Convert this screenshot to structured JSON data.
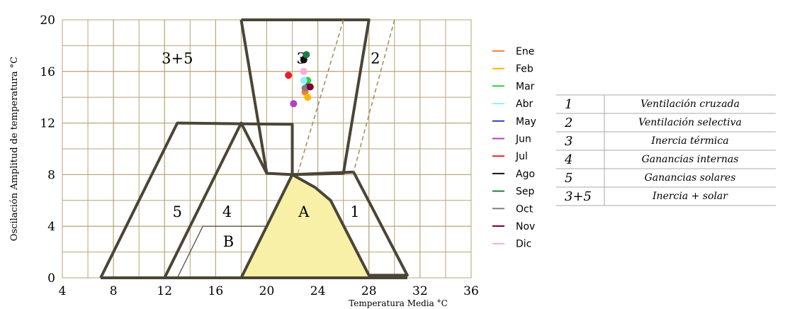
{
  "chart_data": {
    "type": "scatter",
    "ylabel": "Oscilación Amplitud de temperatura °C",
    "xlabel": "Temperatura Media °C",
    "xlim": [
      4,
      36
    ],
    "xticks": [
      4,
      8,
      12,
      16,
      20,
      24,
      28,
      32,
      36
    ],
    "ylim": [
      0,
      20
    ],
    "yticks": [
      0,
      4,
      8,
      12,
      16,
      20
    ],
    "grid": true,
    "grid_step": 2,
    "outlines": [
      {
        "style": "fill",
        "color": "#f7f0a6",
        "points": [
          [
            22,
            8
          ],
          [
            23.8,
            7
          ],
          [
            25,
            6
          ],
          [
            28,
            0
          ],
          [
            18,
            0
          ]
        ]
      },
      {
        "style": "thick",
        "points": [
          [
            18,
            20
          ],
          [
            28,
            20
          ],
          [
            26,
            8.1
          ],
          [
            22,
            8
          ],
          [
            20,
            8.1
          ],
          [
            18,
            20
          ]
        ]
      },
      {
        "style": "thick",
        "points": [
          [
            22,
            8
          ],
          [
            26.8,
            8.2
          ],
          [
            31,
            0.2
          ],
          [
            28,
            0.2
          ],
          [
            25,
            6
          ],
          [
            23.8,
            7
          ],
          [
            22,
            8
          ]
        ]
      },
      {
        "style": "thick",
        "points": [
          [
            7,
            0
          ],
          [
            31,
            0
          ]
        ]
      },
      {
        "style": "thick",
        "points": [
          [
            7,
            0
          ],
          [
            13,
            12
          ],
          [
            22,
            11.9
          ],
          [
            22,
            8
          ]
        ]
      },
      {
        "style": "thick",
        "points": [
          [
            12,
            0
          ],
          [
            18,
            12
          ],
          [
            20,
            8.1
          ]
        ]
      },
      {
        "style": "thick",
        "points": [
          [
            22,
            8
          ],
          [
            18,
            0
          ]
        ]
      },
      {
        "style": "thin",
        "points": [
          [
            13,
            0
          ],
          [
            15,
            4
          ],
          [
            20,
            4
          ]
        ]
      },
      {
        "style": "dashed",
        "points": [
          [
            26,
            20
          ],
          [
            22.4,
            8
          ]
        ]
      },
      {
        "style": "dashed",
        "points": [
          [
            30,
            20
          ],
          [
            26.8,
            8.2
          ]
        ]
      }
    ],
    "zone_labels": [
      {
        "text": "3+5",
        "x": 13,
        "y": 17
      },
      {
        "text": "3",
        "x": 22.7,
        "y": 17
      },
      {
        "text": "2",
        "x": 28.5,
        "y": 17
      },
      {
        "text": "5",
        "x": 13,
        "y": 5.1
      },
      {
        "text": "4",
        "x": 16.9,
        "y": 5.1
      },
      {
        "text": "A",
        "x": 22.9,
        "y": 5.1
      },
      {
        "text": "1",
        "x": 26.9,
        "y": 5.1
      },
      {
        "text": "B",
        "x": 17,
        "y": 2.8
      }
    ],
    "series": [
      {
        "name": "Ene",
        "color": "#f58231",
        "x": [
          23.0
        ],
        "values": [
          14.4
        ]
      },
      {
        "name": "Feb",
        "color": "#f5b800",
        "x": [
          23.2
        ],
        "values": [
          14.0
        ]
      },
      {
        "name": "Mar",
        "color": "#2ecc40",
        "x": [
          23.2
        ],
        "values": [
          15.3
        ]
      },
      {
        "name": "Abr",
        "color": "#8ef0ff",
        "x": [
          22.9
        ],
        "values": [
          15.3
        ]
      },
      {
        "name": "May",
        "color": "#3040c0",
        "x": [
          23.2
        ],
        "values": [
          14.8
        ]
      },
      {
        "name": "Jun",
        "color": "#b040c0",
        "x": [
          22.1
        ],
        "values": [
          13.5
        ]
      },
      {
        "name": "Jul",
        "color": "#e8202a",
        "x": [
          21.7
        ],
        "values": [
          15.7
        ]
      },
      {
        "name": "Ago",
        "color": "#111111",
        "x": [
          22.9
        ],
        "values": [
          16.9
        ]
      },
      {
        "name": "Sep",
        "color": "#1e8040",
        "x": [
          23.1
        ],
        "values": [
          17.3
        ]
      },
      {
        "name": "Oct",
        "color": "#808080",
        "x": [
          23.0
        ],
        "values": [
          14.7
        ]
      },
      {
        "name": "Nov",
        "color": "#800020",
        "x": [
          23.4
        ],
        "values": [
          14.8
        ]
      },
      {
        "name": "Dic",
        "color": "#ffaad4",
        "x": [
          22.9
        ],
        "values": [
          16.0
        ]
      }
    ]
  },
  "table": {
    "rows": [
      [
        "1",
        "Ventilación cruzada"
      ],
      [
        "2",
        "Ventilación selectiva"
      ],
      [
        "3",
        "Inercia térmica"
      ],
      [
        "4",
        "Ganancias internas"
      ],
      [
        "5",
        "Ganancias solares"
      ],
      [
        "3+5",
        "Inercia + solar"
      ]
    ]
  }
}
